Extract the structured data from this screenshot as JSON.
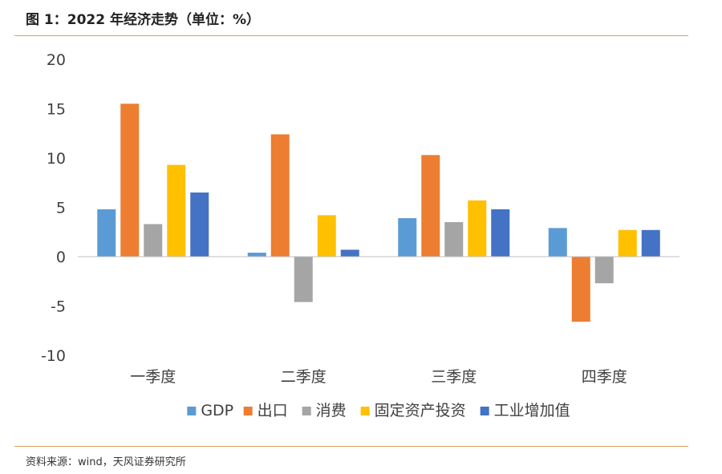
{
  "figure": {
    "title": "图 1：2022 年经济走势（单位：%）",
    "source": "资料来源：wind，天风证券研究所"
  },
  "chart_data": {
    "type": "bar",
    "categories": [
      "一季度",
      "二季度",
      "三季度",
      "四季度"
    ],
    "ylim": [
      -10,
      20
    ],
    "yticks": [
      20,
      15,
      10,
      5,
      0,
      -5,
      -10
    ],
    "grid": false,
    "legend_position": "bottom",
    "series": [
      {
        "name": "GDP",
        "color": "#5b9bd5",
        "values": [
          4.8,
          0.4,
          3.9,
          2.9
        ]
      },
      {
        "name": "出口",
        "color": "#ed7d31",
        "values": [
          15.5,
          12.4,
          10.3,
          -6.6
        ]
      },
      {
        "name": "消费",
        "color": "#a5a5a5",
        "values": [
          3.3,
          -4.6,
          3.5,
          -2.7
        ]
      },
      {
        "name": "固定资产投资",
        "color": "#ffc000",
        "values": [
          9.3,
          4.2,
          5.7,
          2.7
        ]
      },
      {
        "name": "工业增加值",
        "color": "#4472c4",
        "values": [
          6.5,
          0.7,
          4.8,
          2.7
        ]
      }
    ]
  }
}
